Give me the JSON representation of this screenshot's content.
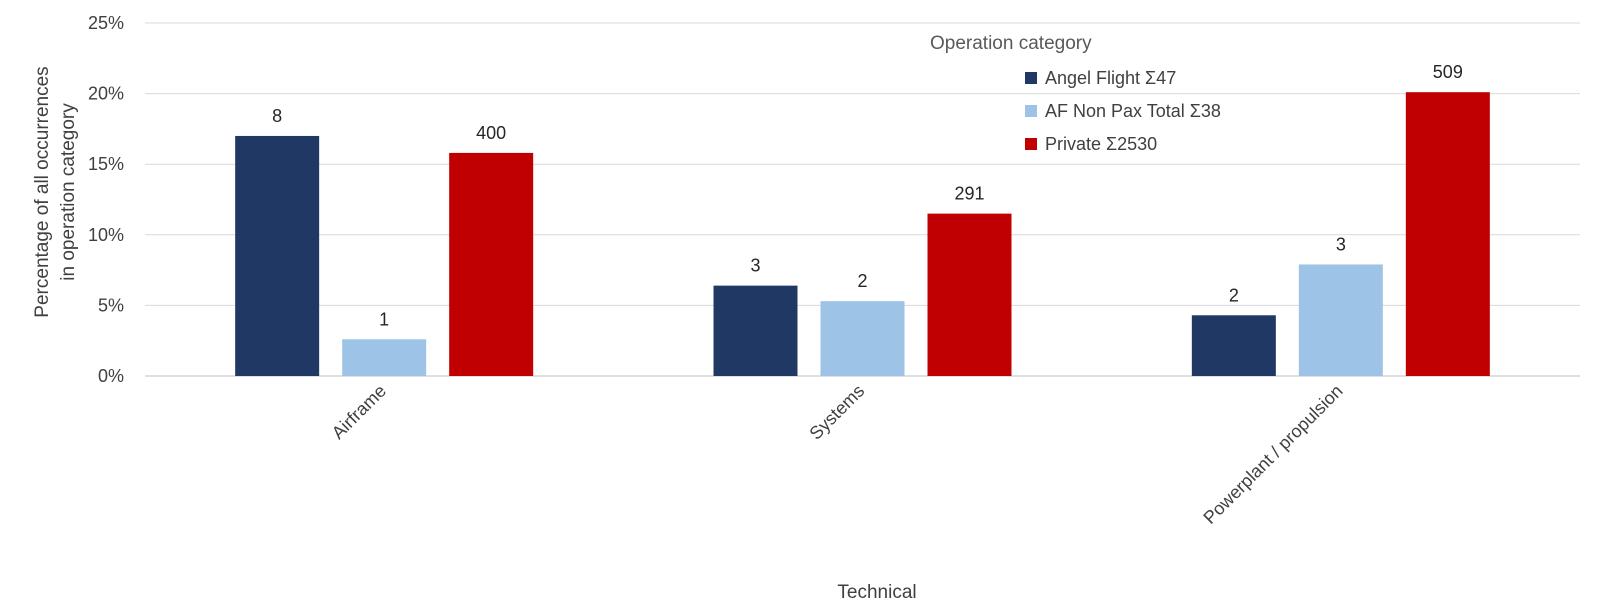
{
  "chart_data": {
    "type": "bar",
    "title": "",
    "xlabel": "Technical",
    "ylabel_line1": "Percentage of all occurrences",
    "ylabel_line2": "in operation category",
    "ylim": [
      0,
      25
    ],
    "yticks": [
      0,
      5,
      10,
      15,
      20,
      25
    ],
    "ytick_labels": [
      "0%",
      "5%",
      "10%",
      "15%",
      "20%",
      "25%"
    ],
    "grid": true,
    "categories": [
      "Airframe",
      "Systems",
      "Powerplant / propulsion"
    ],
    "legend_title": "Operation category",
    "legend_position": "top-right",
    "series": [
      {
        "name": "Angel Flight Σ47",
        "color": "#203864",
        "values": [
          17.0,
          6.4,
          4.3
        ],
        "labels": [
          "8",
          "3",
          "2"
        ]
      },
      {
        "name": "AF Non Pax Total Σ38",
        "color": "#9dc3e6",
        "values": [
          2.6,
          5.3,
          7.9
        ],
        "labels": [
          "1",
          "2",
          "3"
        ]
      },
      {
        "name": "Private Σ2530",
        "color": "#c00000",
        "values": [
          15.8,
          11.5,
          20.1
        ],
        "labels": [
          "400",
          "291",
          "509"
        ]
      }
    ]
  }
}
